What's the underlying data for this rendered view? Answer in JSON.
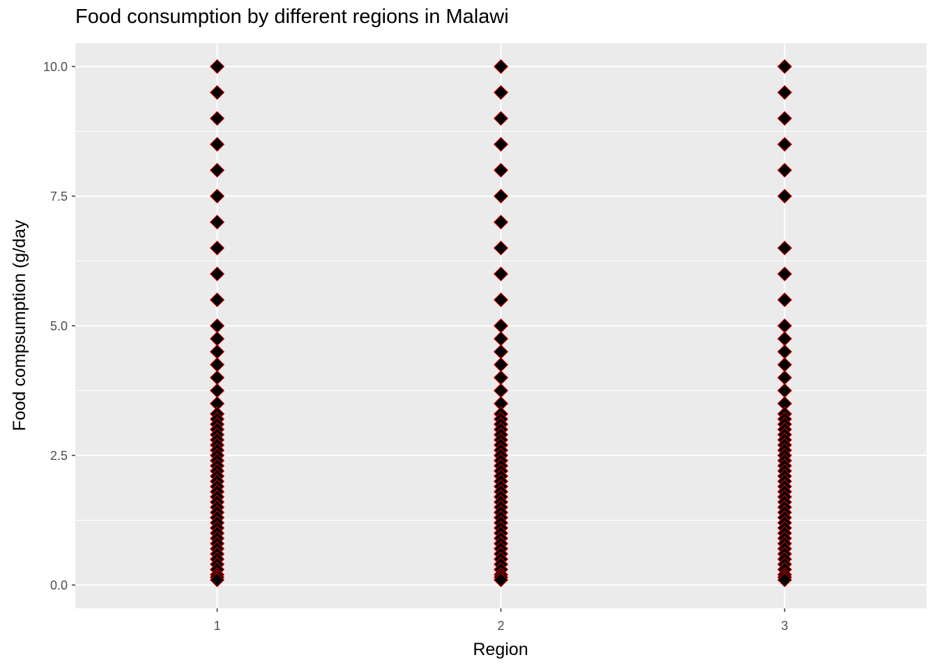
{
  "chart_data": {
    "type": "scatter",
    "title": "Food consumption by different regions in Malawi",
    "xlabel": "Region",
    "ylabel": "Food compsumption (g/day",
    "x_ticks": [
      "1",
      "2",
      "3"
    ],
    "y_ticks": [
      "0.0",
      "2.5",
      "5.0",
      "7.5",
      "10.0"
    ],
    "xlim": [
      0.5,
      3.5
    ],
    "ylim": [
      -0.45,
      10.45
    ],
    "grid": true,
    "legend": "none",
    "marker": "diamond",
    "marker_fill": "#000000",
    "marker_stroke": "#ff0000",
    "panel_background": "#ebebeb",
    "grid_color": "#ffffff",
    "series": [
      {
        "x": 1,
        "values": [
          10,
          9.5,
          9,
          8.5,
          8,
          7.5,
          7,
          6.5,
          6,
          5.5,
          5,
          4.75,
          4.5,
          4.25,
          4,
          3.75,
          3.5,
          3.3,
          3.2,
          3.1,
          3,
          2.9,
          2.8,
          2.7,
          2.6,
          2.5,
          2.4,
          2.3,
          2.2,
          2.1,
          2,
          1.9,
          1.8,
          1.7,
          1.6,
          1.5,
          1.4,
          1.3,
          1.2,
          1.1,
          1,
          0.9,
          0.8,
          0.7,
          0.6,
          0.5,
          0.4,
          0.3,
          0.2,
          0.15,
          0.1
        ]
      },
      {
        "x": 2,
        "values": [
          10,
          9.5,
          9,
          8.5,
          8,
          7.5,
          7,
          6.5,
          6,
          5.5,
          5,
          4.75,
          4.5,
          4.25,
          4,
          3.75,
          3.5,
          3.3,
          3.2,
          3.1,
          3,
          2.9,
          2.8,
          2.7,
          2.6,
          2.5,
          2.4,
          2.3,
          2.2,
          2.1,
          2,
          1.9,
          1.8,
          1.7,
          1.6,
          1.5,
          1.4,
          1.3,
          1.2,
          1.1,
          1,
          0.9,
          0.8,
          0.7,
          0.6,
          0.5,
          0.4,
          0.3,
          0.2,
          0.15,
          0.1
        ]
      },
      {
        "x": 3,
        "values": [
          10,
          9.5,
          9,
          8.5,
          8,
          7.5,
          6.5,
          6,
          5.5,
          5,
          4.75,
          4.5,
          4.25,
          4,
          3.75,
          3.5,
          3.3,
          3.2,
          3.1,
          3,
          2.9,
          2.8,
          2.7,
          2.6,
          2.5,
          2.4,
          2.3,
          2.2,
          2.1,
          2,
          1.9,
          1.8,
          1.7,
          1.6,
          1.5,
          1.4,
          1.3,
          1.2,
          1.1,
          1,
          0.9,
          0.8,
          0.7,
          0.6,
          0.5,
          0.4,
          0.3,
          0.2,
          0.15,
          0.1
        ]
      }
    ]
  }
}
